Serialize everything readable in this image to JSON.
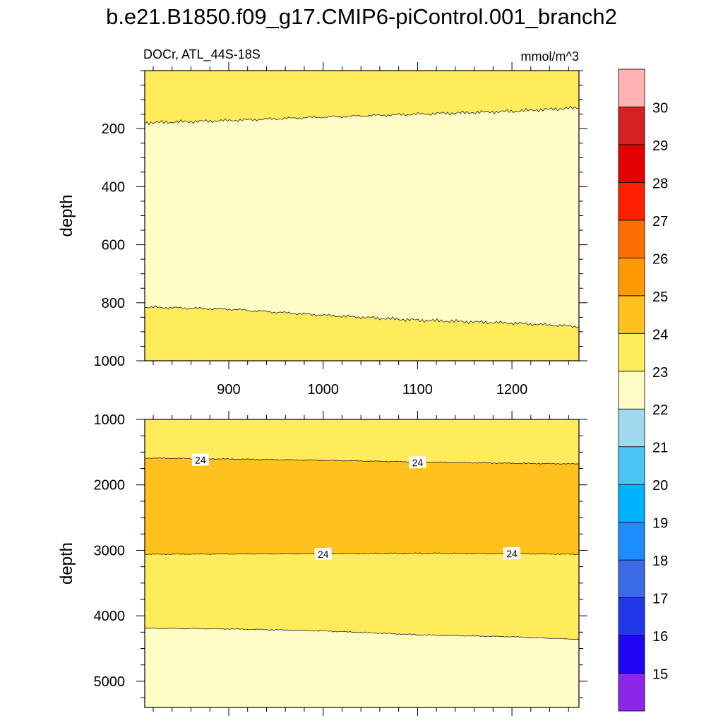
{
  "title": "b.e21.B1850.f09_g17.CMIP6-piControl.001_branch2",
  "chart_data": [
    {
      "type": "heatmap",
      "variable_label": "DOCr, ATL_44S-18S",
      "units_label": "mmol/m^3",
      "ylabel": "depth",
      "xlim": [
        811,
        1271
      ],
      "ylim": [
        1000,
        0
      ],
      "x_ticks": [
        900,
        1000,
        1100,
        1200
      ],
      "y_ticks": [
        200,
        400,
        600,
        800,
        1000
      ],
      "fills": [
        {
          "level_range": [
            23,
            24
          ],
          "color": "#ffeb5b"
        },
        {
          "level_range": [
            22,
            23
          ],
          "color": "#fffdc6"
        },
        {
          "level_range": [
            23,
            24
          ],
          "color": "#ffeb5b"
        }
      ],
      "contours": [
        {
          "level": 23,
          "x": [
            811,
            900,
            1000,
            1100,
            1200,
            1271
          ],
          "depth": [
            180,
            172,
            160,
            150,
            140,
            128
          ]
        },
        {
          "level": 23,
          "x": [
            811,
            900,
            1000,
            1100,
            1200,
            1271
          ],
          "depth": [
            815,
            822,
            843,
            860,
            870,
            882
          ]
        }
      ],
      "contour_labels": []
    },
    {
      "type": "heatmap",
      "ylabel": "depth",
      "xlim": [
        811,
        1271
      ],
      "ylim": [
        5400,
        1000
      ],
      "x_ticks": [
        900,
        1000,
        1100,
        1200
      ],
      "y_ticks": [
        1000,
        2000,
        3000,
        4000,
        5000
      ],
      "fills": [
        {
          "level_range": [
            23,
            24
          ],
          "color": "#ffeb5b"
        },
        {
          "level_range": [
            24,
            25
          ],
          "color": "#fec11e"
        },
        {
          "level_range": [
            23,
            24
          ],
          "color": "#ffeb5b"
        },
        {
          "level_range": [
            22,
            23
          ],
          "color": "#fffdc6"
        }
      ],
      "contours": [
        {
          "level": 24,
          "x": [
            811,
            900,
            1000,
            1100,
            1200,
            1271
          ],
          "depth": [
            1590,
            1605,
            1625,
            1650,
            1670,
            1680
          ]
        },
        {
          "level": 24,
          "x": [
            811,
            900,
            1000,
            1100,
            1200,
            1271
          ],
          "depth": [
            3060,
            3055,
            3050,
            3045,
            3050,
            3060
          ]
        },
        {
          "level": 23,
          "x": [
            811,
            900,
            1000,
            1100,
            1200,
            1271
          ],
          "depth": [
            4190,
            4200,
            4230,
            4290,
            4320,
            4360
          ]
        }
      ],
      "contour_labels": [
        {
          "text": "24",
          "x": 870,
          "depth": 1620
        },
        {
          "text": "24",
          "x": 1100,
          "depth": 1660
        },
        {
          "text": "24",
          "x": 1000,
          "depth": 3060
        },
        {
          "text": "24",
          "x": 1200,
          "depth": 3050
        }
      ]
    }
  ],
  "colorbar": {
    "tick_labels": [
      "15",
      "16",
      "17",
      "18",
      "19",
      "20",
      "21",
      "22",
      "23",
      "24",
      "25",
      "26",
      "27",
      "28",
      "29",
      "30"
    ],
    "colors": [
      "#8a27e8",
      "#2106f6",
      "#2237e8",
      "#3a6ce8",
      "#1e8cfb",
      "#00b1fe",
      "#4bc4f6",
      "#a0d8ef",
      "#fffdc6",
      "#ffeb5b",
      "#fec11e",
      "#fe9a00",
      "#fe6e00",
      "#ff1e00",
      "#e30000",
      "#d42121",
      "#ffb2b2"
    ]
  }
}
